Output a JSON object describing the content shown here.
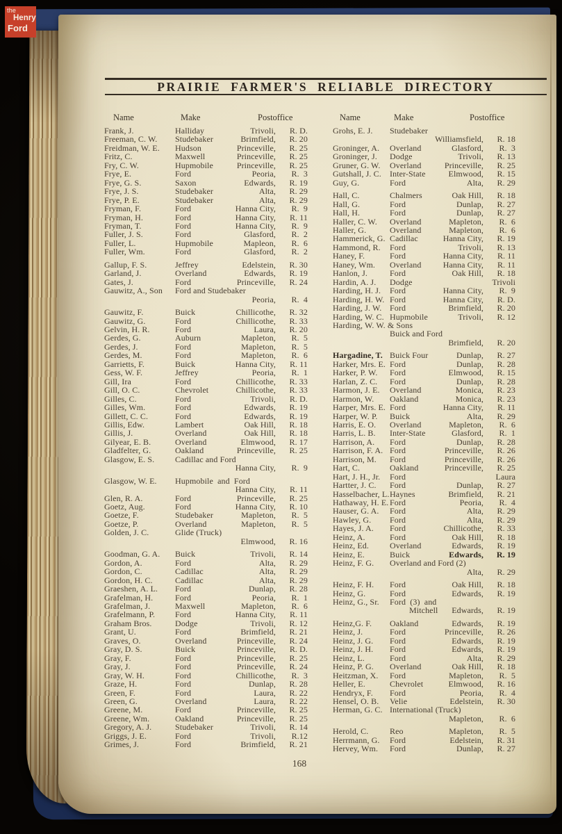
{
  "branding": {
    "logo": {
      "line1": "the",
      "line2": "Henry",
      "line3": "Ford"
    },
    "logo_color": "#c7402a"
  },
  "header": {
    "title": "PRAIRIE FARMER'S RELIABLE DIRECTORY",
    "columns": {
      "name": "Name",
      "make": "Make",
      "postoffice": "Postoffice"
    }
  },
  "footer": {
    "page_number": "168"
  },
  "colors": {
    "paper": "#e8e0c6",
    "ink": "#463c30",
    "cover_navy": "#22345e",
    "background_black": "#070503"
  },
  "directory": {
    "left": [
      {
        "n": "Frank, J.",
        "m": "Halliday",
        "p": "Trivoli",
        "r": "R. D."
      },
      {
        "n": "Freeman, C. W.",
        "m": "Studebaker",
        "p": "Brimfield",
        "r": "R. 20"
      },
      {
        "n": "Freidman, W. E.",
        "m": "Hudson",
        "p": "Princeville",
        "r": "R. 25"
      },
      {
        "n": "Fritz, C.",
        "m": "Maxwell",
        "p": "Princeville",
        "r": "R. 25"
      },
      {
        "n": "Fry, C. W.",
        "m": "Hupmobile",
        "p": "Princeville",
        "r": "R. 25"
      },
      {
        "n": "Frye, E.",
        "m": "Ford",
        "p": "Peoria",
        "r": "R.  3"
      },
      {
        "n": "Frye, G. S.",
        "m": "Saxon",
        "p": "Edwards",
        "r": "R. 19"
      },
      {
        "n": "Frye, J. S.",
        "m": "Studebaker",
        "p": "Alta",
        "r": "R. 29"
      },
      {
        "n": "Frye, P. E.",
        "m": "Studebaker",
        "p": "Alta",
        "r": "R. 29"
      },
      {
        "n": "Fryman, F.",
        "m": "Ford",
        "p": "Hanna City",
        "r": "R.  9"
      },
      {
        "n": "Fryman, H.",
        "m": "Ford",
        "p": "Hanna City",
        "r": "R. 11"
      },
      {
        "n": "Fryman, T.",
        "m": "Ford",
        "p": "Hanna City",
        "r": "R.  9"
      },
      {
        "n": "Fuller, J. S.",
        "m": "Ford",
        "p": "Glasford",
        "r": "R.  2"
      },
      {
        "n": "Fuller, L.",
        "m": "Hupmobile",
        "p": "Mapleon",
        "r": "R.  6"
      },
      {
        "n": "Fuller, Wm.",
        "m": "Ford",
        "p": "Glasford",
        "r": "R.  2"
      },
      {
        "n": "Gallup, F. S.",
        "m": "Jeffrey",
        "p": "Edelstein",
        "r": "R. 30",
        "g": 1
      },
      {
        "n": "Garland, J.",
        "m": "Overland",
        "p": "Edwards",
        "r": "R. 19"
      },
      {
        "n": "Gates, J.",
        "m": "Ford",
        "p": "Princeville",
        "r": "R. 24"
      },
      {
        "n": "Gauwitz, A., Son",
        "m": "Ford and Studebaker",
        "p": "Peoria",
        "r": "R.  4",
        "w": 1
      },
      {
        "n": "Gauwitz, F.",
        "m": "Buick",
        "p": "Chillicothe",
        "r": "R. 32",
        "g": 1
      },
      {
        "n": "Gauwitz, G.",
        "m": "Ford",
        "p": "Chillicothe",
        "r": "R. 33"
      },
      {
        "n": "Gelvin, H. R.",
        "m": "Ford",
        "p": "Laura",
        "r": "R. 20"
      },
      {
        "n": "Gerdes, G.",
        "m": "Auburn",
        "p": "Mapleton",
        "r": "R.  5"
      },
      {
        "n": "Gerdes, J.",
        "m": "Ford",
        "p": "Mapleton",
        "r": "R.  5"
      },
      {
        "n": "Gerdes, M.",
        "m": "Ford",
        "p": "Mapleton",
        "r": "R.  6"
      },
      {
        "n": "Garrietts, F.",
        "m": "Buick",
        "p": "Hanna City",
        "r": "R. 11"
      },
      {
        "n": "Gess, W. F.",
        "m": "Jeffrey",
        "p": "Peoria",
        "r": "R.  1"
      },
      {
        "n": "Gill, Ira",
        "m": "Ford",
        "p": "Chillicothe",
        "r": "R. 33"
      },
      {
        "n": "Gill, O. C.",
        "m": "Chevrolet",
        "p": "Chillicothe",
        "r": "R. 33"
      },
      {
        "n": "Gilles, C.",
        "m": "Ford",
        "p": "Trivoli",
        "r": "R. D."
      },
      {
        "n": "Gilles, Wm.",
        "m": "Ford",
        "p": "Edwards",
        "r": "R. 19"
      },
      {
        "n": "Gillett, C. C.",
        "m": "Ford",
        "p": "Edwards",
        "r": "R. 19"
      },
      {
        "n": "Gillis, Edw.",
        "m": "Lambert",
        "p": "Oak Hill",
        "r": "R. 18"
      },
      {
        "n": "Gillis, J.",
        "m": "Overland",
        "p": "Oak Hill",
        "r": "R. 18"
      },
      {
        "n": "Gilyear, E. B.",
        "m": "Overland",
        "p": "Elmwood",
        "r": "R. 17"
      },
      {
        "n": "Gladfelter, G.",
        "m": "Oakland",
        "p": "Princeville",
        "r": "R. 25"
      },
      {
        "n": "Glasgow, E. S.",
        "m": "Cadillac and Ford",
        "p": "Hanna City",
        "r": "R.  9",
        "w": 1
      },
      {
        "n": "Glasgow, W. E.",
        "m": "Hupmobile  and  Ford",
        "p": "Hanna City",
        "r": "R. 11",
        "w": 1,
        "g": 1
      },
      {
        "n": "Glen, R. A.",
        "m": "Ford",
        "p": "Princeville",
        "r": "R. 25"
      },
      {
        "n": "Goetz, Aug.",
        "m": "Ford",
        "p": "Hanna City",
        "r": "R. 10"
      },
      {
        "n": "Goetze, F.",
        "m": "Studebaker",
        "p": "Mapleton",
        "r": "R.  5"
      },
      {
        "n": "Goetze, P.",
        "m": "Overland",
        "p": "Mapleton",
        "r": "R.  5"
      },
      {
        "n": "Golden, J. C.",
        "m": "Glide (Truck)",
        "p": "Elmwood",
        "r": "R. 16",
        "w": 1
      },
      {
        "n": "Goodman, G. A.",
        "m": "Buick",
        "p": "Trivoli",
        "r": "R. 14",
        "g": 1
      },
      {
        "n": "Gordon, A.",
        "m": "Ford",
        "p": "Alta",
        "r": "R. 29"
      },
      {
        "n": "Gordon, C.",
        "m": "Cadillac",
        "p": "Alta",
        "r": "R. 29"
      },
      {
        "n": "Gordon, H. C.",
        "m": "Cadillac",
        "p": "Alta",
        "r": "R. 29"
      },
      {
        "n": "Graeshen, A. L.",
        "m": "Ford",
        "p": "Dunlap",
        "r": "R. 28"
      },
      {
        "n": "Grafelman, H.",
        "m": "Ford",
        "p": "Peoria",
        "r": "R.  1"
      },
      {
        "n": "Grafelman, J.",
        "m": "Maxwell",
        "p": "Mapleton",
        "r": "R.  6"
      },
      {
        "n": "Grafelmann, P.",
        "m": "Ford",
        "p": "Hanna City",
        "r": "R. 11"
      },
      {
        "n": "Graham Bros.",
        "m": "Dodge",
        "p": "Trivoli",
        "r": "R. 12"
      },
      {
        "n": "Grant, U.",
        "m": "Ford",
        "p": "Brimfield",
        "r": "R. 21"
      },
      {
        "n": "Graves, O.",
        "m": "Overland",
        "p": "Princeville",
        "r": "R. 24"
      },
      {
        "n": "Gray, D. S.",
        "m": "Buick",
        "p": "Princeville",
        "r": "R. D."
      },
      {
        "n": "Gray, F.",
        "m": "Ford",
        "p": "Princeville",
        "r": "R. 25"
      },
      {
        "n": "Gray, J.",
        "m": "Ford",
        "p": "Princeville",
        "r": "R. 24"
      },
      {
        "n": "Gray, W. H.",
        "m": "Ford",
        "p": "Chillicothe",
        "r": "R.  3"
      },
      {
        "n": "Graze, H.",
        "m": "Ford",
        "p": "Dunlap",
        "r": "R. 28"
      },
      {
        "n": "Green, F.",
        "m": "Ford",
        "p": "Laura",
        "r": "R. 22"
      },
      {
        "n": "Green, G.",
        "m": "Overland",
        "p": "Laura",
        "r": "R. 22"
      },
      {
        "n": "Greene, M.",
        "m": "Ford",
        "p": "Princeville",
        "r": "R. 25"
      },
      {
        "n": "Greene, Wm.",
        "m": "Oakland",
        "p": "Princeville",
        "r": "R. 25"
      },
      {
        "n": "Gregory, A. J.",
        "m": "Studebaker",
        "p": "Trivoli",
        "r": "R. 14"
      },
      {
        "n": "Griggs, J. E.",
        "m": "Ford",
        "p": "Trivoli",
        "r": "R.12"
      },
      {
        "n": "Grimes, J.",
        "m": "Ford",
        "p": "Brimfield",
        "r": "R. 21"
      }
    ],
    "right": [
      {
        "n": "Grohs, E. J.",
        "m": "Studebaker",
        "p": "Williamsfield",
        "r": "R. 18",
        "w": 1
      },
      {
        "n": "Groninger, A.",
        "m": "Overland",
        "p": "Glasford",
        "r": "R.  3"
      },
      {
        "n": "Groninger, J.",
        "m": "Dodge",
        "p": "Trivoli",
        "r": "R. 13"
      },
      {
        "n": "Gruner, G. W.",
        "m": "Overland",
        "p": "Princeville",
        "r": "R. 25"
      },
      {
        "n": "Gutshall, J. C.",
        "m": "Inter-State",
        "p": "Elmwood",
        "r": "R. 15"
      },
      {
        "n": "Guy, G.",
        "m": "Ford",
        "p": "Alta",
        "r": "R. 29"
      },
      {
        "n": "Hall, C.",
        "m": "Chalmers",
        "p": "Oak Hill",
        "r": "R. 18",
        "g": 1
      },
      {
        "n": "Hall, G.",
        "m": "Ford",
        "p": "Dunlap",
        "r": "R. 27"
      },
      {
        "n": "Hall, H.",
        "m": "Ford",
        "p": "Dunlap",
        "r": "R. 27"
      },
      {
        "n": "Haller, C. W.",
        "m": "Overland",
        "p": "Mapleton",
        "r": "R.  6"
      },
      {
        "n": "Haller, G.",
        "m": "Overland",
        "p": "Mapleton",
        "r": "R.  6"
      },
      {
        "n": "Hammerick, G.",
        "m": "Cadillac",
        "p": "Hanna City",
        "r": "R. 19"
      },
      {
        "n": "Hammond, R.",
        "m": "Ford",
        "p": "Trivoli",
        "r": "R. 13"
      },
      {
        "n": "Haney, F.",
        "m": "Ford",
        "p": "Hanna City",
        "r": "R. 11"
      },
      {
        "n": "Haney, Wm.",
        "m": "Overland",
        "p": "Hanna City",
        "r": "R. 11"
      },
      {
        "n": "Hanlon, J.",
        "m": "Ford",
        "p": "Oak Hill",
        "r": "R. 18"
      },
      {
        "n": "Hardin, A. J.",
        "m": "Dodge",
        "p": "Trivoli",
        "r": ""
      },
      {
        "n": "Harding, H. J.",
        "m": "Ford",
        "p": "Hanna City",
        "r": "R.  9"
      },
      {
        "n": "Harding, H. W.",
        "m": "Ford",
        "p": "Hanna City",
        "r": "R. D."
      },
      {
        "n": "Harding, J. W.",
        "m": "Ford",
        "p": "Brimfield",
        "r": "R. 20"
      },
      {
        "n": "Harding, W. C.",
        "m": "Hupmobile",
        "p": "Trivoli",
        "r": "R. 12"
      },
      {
        "n": "Harding, W. W. & Sons",
        "m": "Buick and Ford",
        "p": "Brimfield",
        "r": "R. 20",
        "w": 2
      },
      {
        "n": "Hargadine, T.",
        "m": "Buick Four",
        "p": "Dunlap",
        "r": "R. 27",
        "b": 1,
        "g": 1
      },
      {
        "n": "Harker, Mrs. E.",
        "m": "Ford",
        "p": "Dunlap",
        "r": "R. 28"
      },
      {
        "n": "Harker, P. W.",
        "m": "Ford",
        "p": "Elmwood",
        "r": "R. 15"
      },
      {
        "n": "Harlan, Z. C.",
        "m": "Ford",
        "p": "Dunlap",
        "r": "R. 28"
      },
      {
        "n": "Harmon, J. E.",
        "m": "Overland",
        "p": "Monica",
        "r": "R. 23"
      },
      {
        "n": "Harmon, W.",
        "m": "Oakland",
        "p": "Monica",
        "r": "R. 23"
      },
      {
        "n": "Harper, Mrs. E.",
        "m": "Ford",
        "p": "Hanna City",
        "r": "R. 11"
      },
      {
        "n": "Harper, W. P.",
        "m": "Buick",
        "p": "Alta",
        "r": "R. 29"
      },
      {
        "n": "Harris, E. O.",
        "m": "Overland",
        "p": "Mapleton",
        "r": "R.  6"
      },
      {
        "n": "Harris, L. B.",
        "m": "Inter-State",
        "p": "Glasford",
        "r": "R.  1"
      },
      {
        "n": "Harrison, A.",
        "m": "Ford",
        "p": "Dunlap",
        "r": "R. 28"
      },
      {
        "n": "Harrison, F. A.",
        "m": "Ford",
        "p": "Princeville",
        "r": "R. 26"
      },
      {
        "n": "Harrison, M.",
        "m": "Ford",
        "p": "Princeville",
        "r": "R. 26"
      },
      {
        "n": "Hart, C.",
        "m": "Oakland",
        "p": "Princeville",
        "r": "R. 25"
      },
      {
        "n": "Hart, J. H., Jr.",
        "m": "Ford",
        "p": "Laura",
        "r": ""
      },
      {
        "n": "Hartter, J. C.",
        "m": "Ford",
        "p": "Dunlap",
        "r": "R. 27"
      },
      {
        "n": "Hasselbacher, L.",
        "m": "Haynes",
        "p": "Brimfield",
        "r": "R. 21"
      },
      {
        "n": "Hathaway, H. E.",
        "m": "Ford",
        "p": "Peoria",
        "r": "R.  4"
      },
      {
        "n": "Hauser, G. A.",
        "m": "Ford",
        "p": "Alta",
        "r": "R. 29"
      },
      {
        "n": "Hawley, G.",
        "m": "Ford",
        "p": "Alta",
        "r": "R. 29"
      },
      {
        "n": "Hayes, J. A.",
        "m": "Ford",
        "p": "Chillicothe",
        "r": "R. 33"
      },
      {
        "n": "Heinz, A.",
        "m": "Ford",
        "p": "Oak Hill",
        "r": "R. 18"
      },
      {
        "n": "Heinz, Ed.",
        "m": "Overland",
        "p": "Edwards",
        "r": "R. 19"
      },
      {
        "n": "Heinz, E.",
        "m": "Buick",
        "p": "Edwards",
        "r": "R. 19",
        "bp": 1
      },
      {
        "n": "Heinz, F. G.",
        "m": "Overland and Ford (2)",
        "p": "Alta",
        "r": "R. 29",
        "w": 1
      },
      {
        "n": "Heinz, F. H.",
        "m": "Ford",
        "p": "Oak Hill",
        "r": "R. 18",
        "g": 1
      },
      {
        "n": "Heinz, G.",
        "m": "Ford",
        "p": "Edwards",
        "r": "R. 19"
      },
      {
        "n": "Heinz, G., Sr.",
        "m": "Ford  (3)  and",
        "m2": "Mitchell",
        "p": "Edwards",
        "r": "R. 19",
        "w": 3
      },
      {
        "n": "Heinz,G. F.",
        "m": "Oakland",
        "p": "Edwards",
        "r": "R. 19",
        "g": 1
      },
      {
        "n": "Heinz, J.",
        "m": "Ford",
        "p": "Princeville",
        "r": "R. 26"
      },
      {
        "n": "Heinz, J. G.",
        "m": "Ford",
        "p": "Edwards",
        "r": "R. 19"
      },
      {
        "n": "Heinz, J. H.",
        "m": "Ford",
        "p": "Edwards",
        "r": "R. 19"
      },
      {
        "n": "Heinz, L.",
        "m": "Ford",
        "p": "Alta",
        "r": "R. 29"
      },
      {
        "n": "Heinz, P. G.",
        "m": "Overland",
        "p": "Oak Hill",
        "r": "R. 18"
      },
      {
        "n": "Heitzman, X.",
        "m": "Ford",
        "p": "Mapleton",
        "r": "R.  5"
      },
      {
        "n": "Heller, E.",
        "m": "Chevrolet",
        "p": "Elmwood",
        "r": "R. 16"
      },
      {
        "n": "Hendryx, F.",
        "m": "Ford",
        "p": "Peoria",
        "r": "R.  4"
      },
      {
        "n": "Hensel, O. B.",
        "m": "Velie",
        "p": "Edelstein",
        "r": "R. 30"
      },
      {
        "n": "Herman, G. C.",
        "m": "International (Truck)",
        "p": "Mapleton",
        "r": "R.  6",
        "w": 1
      },
      {
        "n": "Herold, C.",
        "m": "Reo",
        "p": "Mapleton",
        "r": "R.  5",
        "g": 1
      },
      {
        "n": "Herrmann, G.",
        "m": "Ford",
        "p": "Edelstein",
        "r": "R. 31"
      },
      {
        "n": "Hervey, Wm.",
        "m": "Ford",
        "p": "Dunlap",
        "r": "R. 27"
      }
    ]
  }
}
